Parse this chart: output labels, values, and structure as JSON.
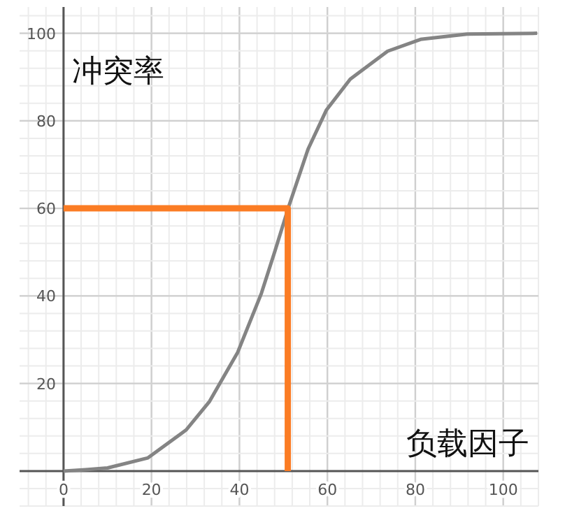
{
  "chart_data": {
    "type": "line",
    "xlabel": "负载因子",
    "ylabel": "冲突率",
    "xlim": [
      -10,
      108
    ],
    "ylim": [
      -8,
      106
    ],
    "xticks": [
      0,
      20,
      40,
      60,
      80,
      100
    ],
    "yticks": [
      20,
      40,
      60,
      80,
      100
    ],
    "grid": true,
    "marker": "none",
    "series": [
      {
        "color": "#848484",
        "x": [
          0,
          5,
          10,
          19.2,
          27.9,
          33.2,
          39.6,
          45,
          48.1,
          51.3,
          55.6,
          59.8,
          65.2,
          73.7,
          81.2,
          91.8,
          107.7
        ],
        "values": [
          0,
          0.3,
          0.7,
          3,
          9.4,
          15.9,
          27.1,
          40.6,
          50.3,
          60.7,
          73.5,
          82.5,
          89.5,
          95.9,
          98.6,
          99.8,
          100
        ]
      },
      {
        "color": "#fb7c24",
        "x": [
          0,
          51,
          51
        ],
        "values": [
          60,
          60,
          0
        ]
      }
    ]
  }
}
